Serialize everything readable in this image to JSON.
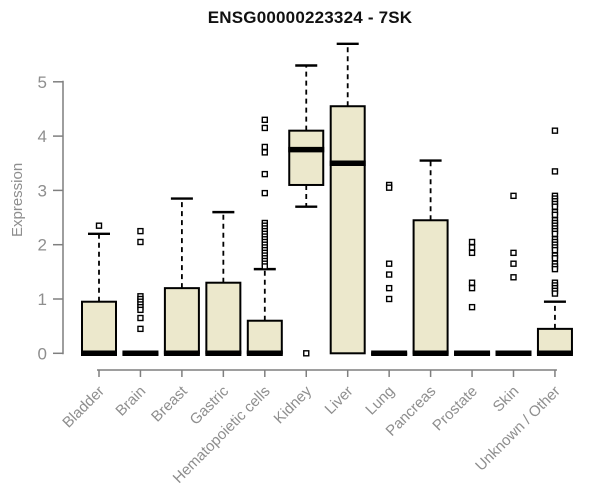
{
  "chart_data": {
    "type": "boxplot",
    "title": "ENSG00000223324 - 7SK",
    "ylabel": "Expression",
    "xlabel": "",
    "ylim": [
      0,
      5
    ],
    "yticks": [
      0,
      1,
      2,
      3,
      4,
      5
    ],
    "grid": false,
    "legend": "none",
    "categories": [
      "Bladder",
      "Brain",
      "Breast",
      "Gastric",
      "Hematopoietic cells",
      "Kidney",
      "Liver",
      "Lung",
      "Pancreas",
      "Prostate",
      "Skin",
      "Unknown / Other"
    ],
    "series": [
      {
        "label": "Bladder",
        "q1": 0,
        "median": 0,
        "q3": 0.95,
        "whisker_low": 0,
        "whisker_high": 2.2,
        "outliers": [
          2.35
        ]
      },
      {
        "label": "Brain",
        "q1": 0,
        "median": 0,
        "q3": 0,
        "whisker_low": 0,
        "whisker_high": 0,
        "outliers": [
          2.25,
          2.05,
          1.05,
          1.0,
          0.95,
          0.9,
          0.85,
          0.8,
          0.65,
          0.45
        ]
      },
      {
        "label": "Breast",
        "q1": 0,
        "median": 0,
        "q3": 1.2,
        "whisker_low": 0,
        "whisker_high": 2.85,
        "outliers": []
      },
      {
        "label": "Gastric",
        "q1": 0,
        "median": 0,
        "q3": 1.3,
        "whisker_low": 0,
        "whisker_high": 2.6,
        "outliers": []
      },
      {
        "label": "Hematopoietic cells",
        "q1": 0,
        "median": 0,
        "q3": 0.6,
        "whisker_low": 0,
        "whisker_high": 1.55,
        "outliers": [
          4.3,
          4.15,
          3.8,
          3.7,
          3.3,
          2.95,
          2.4,
          2.35,
          2.3,
          2.25,
          2.2,
          2.15,
          2.1,
          2.05,
          2.0,
          1.95,
          1.9,
          1.85,
          1.8,
          1.75,
          1.7,
          1.65,
          1.6
        ]
      },
      {
        "label": "Kidney",
        "q1": 3.1,
        "median": 3.75,
        "q3": 4.1,
        "whisker_low": 2.7,
        "whisker_high": 5.3,
        "outliers": [
          0
        ]
      },
      {
        "label": "Liver",
        "q1": 0,
        "median": 3.5,
        "q3": 4.55,
        "whisker_low": 0,
        "whisker_high": 5.7,
        "outliers": []
      },
      {
        "label": "Lung",
        "q1": 0,
        "median": 0,
        "q3": 0,
        "whisker_low": 0,
        "whisker_high": 0,
        "outliers": [
          3.1,
          3.05,
          1.65,
          1.45,
          1.2,
          1.0
        ]
      },
      {
        "label": "Pancreas",
        "q1": 0,
        "median": 0,
        "q3": 2.45,
        "whisker_low": 0,
        "whisker_high": 3.55,
        "outliers": []
      },
      {
        "label": "Prostate",
        "q1": 0,
        "median": 0,
        "q3": 0,
        "whisker_low": 0,
        "whisker_high": 0,
        "outliers": [
          2.05,
          1.95,
          1.85,
          1.3,
          1.2,
          0.85
        ]
      },
      {
        "label": "Skin",
        "q1": 0,
        "median": 0,
        "q3": 0,
        "whisker_low": 0,
        "whisker_high": 0,
        "outliers": [
          2.9,
          1.85,
          1.65,
          1.4
        ]
      },
      {
        "label": "Unknown / Other",
        "q1": 0,
        "median": 0,
        "q3": 0.45,
        "whisker_low": 0,
        "whisker_high": 0.95,
        "outliers": [
          4.1,
          3.35,
          2.9,
          2.85,
          2.8,
          2.75,
          2.7,
          2.6,
          2.55,
          2.45,
          2.4,
          2.35,
          2.3,
          2.25,
          2.2,
          2.1,
          2.05,
          2.0,
          1.95,
          1.9,
          1.8,
          1.75,
          1.65,
          1.6,
          1.55,
          1.3,
          1.25,
          1.2,
          1.15,
          1.1
        ]
      }
    ],
    "colors": {
      "box_fill": "#ece8cc",
      "box_border": "#000000",
      "median": "#000000",
      "whisker": "#000000",
      "outlier_fill": "#ffffff",
      "outlier_border": "#000000",
      "axis_line": "#7f7f7f",
      "tick_label": "#8e8e8e",
      "title": "#111111",
      "background": "#ffffff"
    }
  }
}
